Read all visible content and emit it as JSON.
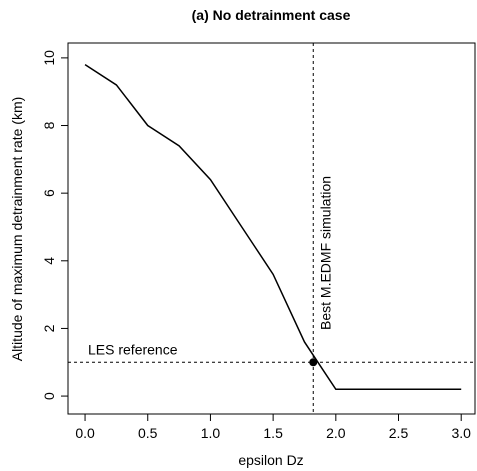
{
  "chart_data": {
    "type": "line",
    "title": "(a) No detrainment case",
    "x_label": "epsilon Dz",
    "y_label": "Altitude of maximum detrainment rate (km)",
    "x": [
      0,
      0.25,
      0.5,
      0.75,
      1.0,
      1.25,
      1.5,
      1.75,
      2.0,
      2.25,
      2.5,
      2.75,
      3.0
    ],
    "values": [
      9.8,
      9.2,
      8.0,
      7.4,
      6.4,
      5.0,
      3.6,
      1.6,
      0.2,
      0.2,
      0.2,
      0.2,
      0.2
    ],
    "color": "#000000",
    "best_point": {
      "x": 1.82,
      "y": 1.0
    },
    "annotations": {
      "hline_label": "LES reference",
      "vline_label": "Best M.EDMF simulation"
    },
    "xlim": [
      -0.136,
      3.11
    ],
    "ylim": [
      -0.53,
      10.44
    ],
    "xticks": [
      {
        "value": 0,
        "label": "0.0"
      },
      0.5,
      {
        "value": 1,
        "label": "1.0"
      },
      1.5,
      {
        "value": 2,
        "label": "2.0"
      },
      2.5,
      {
        "value": 3,
        "label": "3.0"
      }
    ],
    "yticks": [
      0,
      2,
      4,
      6,
      8,
      10
    ]
  }
}
